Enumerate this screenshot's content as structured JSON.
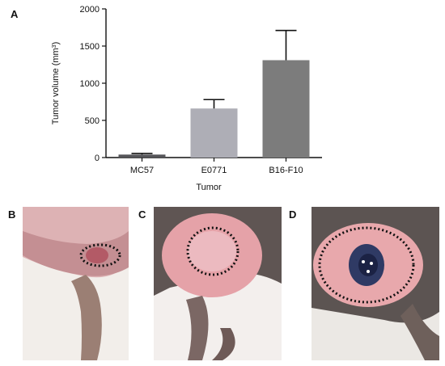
{
  "panels": {
    "a": "A",
    "b": "B",
    "c": "C",
    "d": "D"
  },
  "chart_data": {
    "type": "bar",
    "title": "",
    "xlabel": "Tumor",
    "ylabel_prefix": "Tumor volume (mm",
    "ylabel_sup": "3",
    "ylabel_suffix": ")",
    "categories": [
      "MC57",
      "E0771",
      "B16-F10"
    ],
    "values": [
      40,
      660,
      1310
    ],
    "errors": [
      15,
      120,
      400
    ],
    "ylim": [
      0,
      2000
    ],
    "yticks": [
      0,
      500,
      1000,
      1500,
      2000
    ],
    "bar_colors": [
      "#555559",
      "#aeaeb6",
      "#7c7c7c"
    ],
    "grid": false,
    "error_bars": "upper"
  }
}
